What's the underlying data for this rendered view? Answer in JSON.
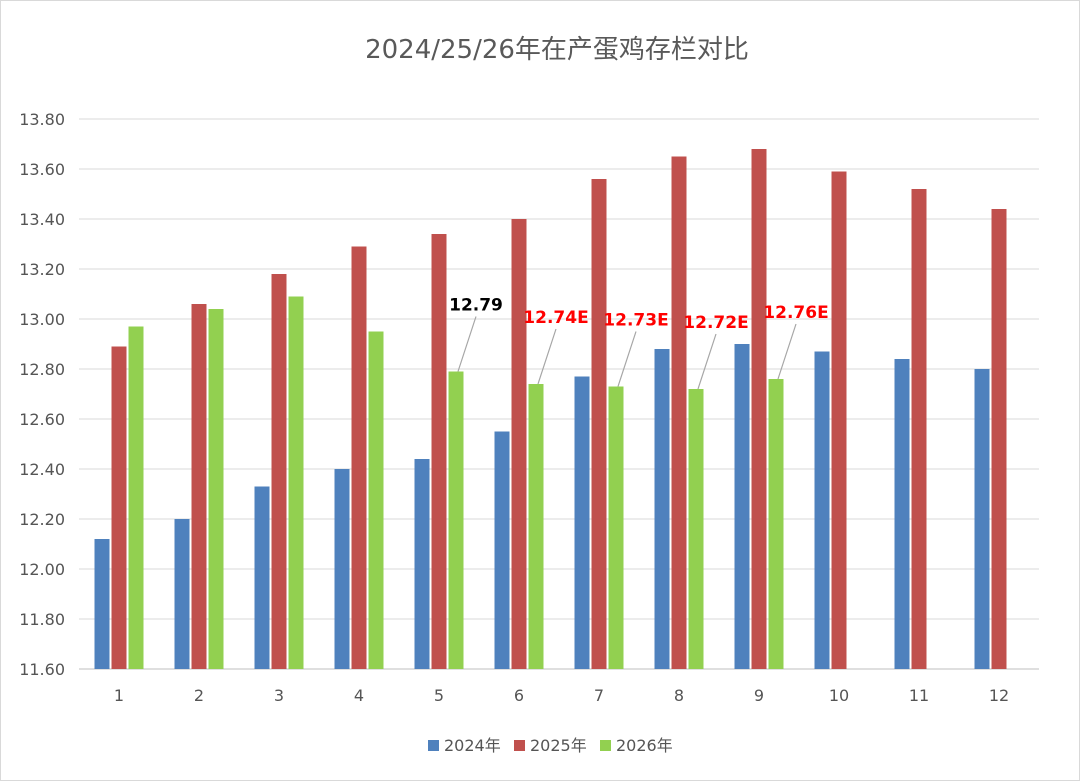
{
  "chart_data": {
    "type": "bar",
    "title": "2024/25/26年在产蛋鸡存栏对比",
    "categories": [
      "1",
      "2",
      "3",
      "4",
      "5",
      "6",
      "7",
      "8",
      "9",
      "10",
      "11",
      "12"
    ],
    "ylim": [
      11.6,
      13.8
    ],
    "yticks": [
      "11.60",
      "11.80",
      "12.00",
      "12.20",
      "12.40",
      "12.60",
      "12.80",
      "13.00",
      "13.20",
      "13.40",
      "13.60",
      "13.80"
    ],
    "grid": true,
    "legend_position": "bottom",
    "series": [
      {
        "name": "2024年",
        "color": "#4f81bd",
        "values": [
          12.12,
          12.2,
          12.33,
          12.4,
          12.44,
          12.55,
          12.77,
          12.88,
          12.9,
          12.87,
          12.84,
          12.8
        ]
      },
      {
        "name": "2025年",
        "color": "#c0504d",
        "values": [
          12.89,
          13.06,
          13.18,
          13.29,
          13.34,
          13.4,
          13.56,
          13.65,
          13.68,
          13.59,
          13.52,
          13.44
        ]
      },
      {
        "name": "2026年",
        "color": "#92d050",
        "values": [
          12.97,
          13.04,
          13.09,
          12.95,
          12.79,
          12.74,
          12.73,
          12.72,
          12.76,
          null,
          null,
          null
        ]
      }
    ],
    "annotations": [
      {
        "text": "12.79",
        "category": "5",
        "series": 2,
        "color": "black"
      },
      {
        "text": "12.74E",
        "category": "6",
        "series": 2,
        "color": "red"
      },
      {
        "text": "12.73E",
        "category": "7",
        "series": 2,
        "color": "red"
      },
      {
        "text": "12.72E",
        "category": "8",
        "series": 2,
        "color": "red"
      },
      {
        "text": "12.76E",
        "category": "9",
        "series": 2,
        "color": "red"
      }
    ]
  }
}
